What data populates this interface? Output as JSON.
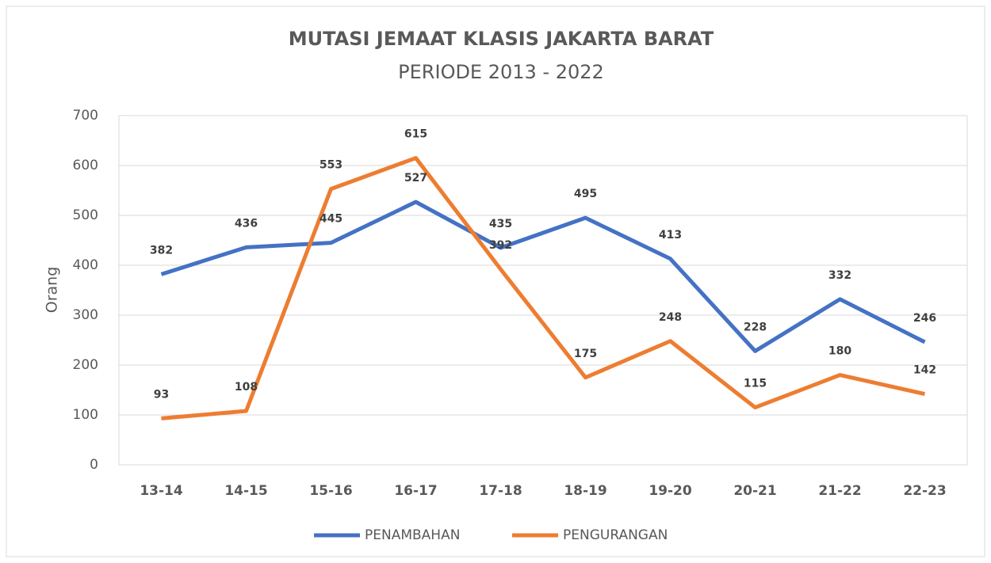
{
  "chart_data": {
    "type": "line",
    "title": "MUTASI JEMAAT KLASIS JAKARTA BARAT",
    "subtitle": "PERIODE 2013 - 2022",
    "y_label": "Orang",
    "categories": [
      "13-14",
      "14-15",
      "15-16",
      "16-17",
      "17-18",
      "18-19",
      "19-20",
      "20-21",
      "21-22",
      "22-23"
    ],
    "series": [
      {
        "name": "PENAMBAHAN",
        "color": "#4472c4",
        "values": [
          382,
          436,
          445,
          527,
          435,
          495,
          413,
          228,
          332,
          246
        ]
      },
      {
        "name": "PENGURANGAN",
        "color": "#ed7d31",
        "values": [
          93,
          108,
          553,
          615,
          392,
          175,
          248,
          115,
          180,
          142
        ]
      }
    ],
    "ylim": [
      0,
      700
    ],
    "yticks": [
      0,
      100,
      200,
      300,
      400,
      500,
      600,
      700
    ],
    "grid": true,
    "legend": "bottom"
  }
}
